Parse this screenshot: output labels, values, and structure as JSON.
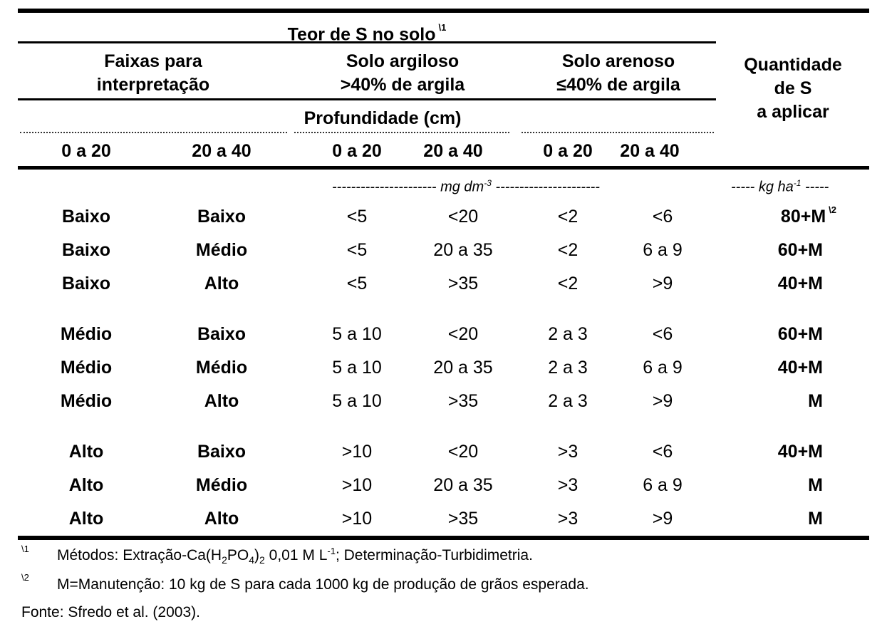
{
  "header": {
    "teor": "Teor de S no solo",
    "teor_sup": "\\1",
    "faixas_line1": "Faixas para",
    "faixas_line2": "interpretação",
    "argiloso_line1": "Solo argiloso",
    "argiloso_line2": ">40% de argila",
    "arenoso_line1": "Solo arenoso",
    "arenoso_line2": "≤40% de argila",
    "quantidade_line1": "Quantidade",
    "quantidade_line2": "de S",
    "quantidade_line3": "a aplicar",
    "profundidade": "Profundidade (cm)",
    "depths": [
      "0 a 20",
      "20 a 40",
      "0 a 20",
      "20 a 40",
      "0 a 20",
      "20 a 40"
    ]
  },
  "units": {
    "mg_left": "---------------------- ",
    "mg_label": "mg dm",
    "mg_sup": "-3",
    "mg_right": " ----------------------",
    "kg_left": "----- ",
    "kg_label": "kg ha",
    "kg_sup": "-1",
    "kg_right": " -----"
  },
  "rows": [
    {
      "c1": "Baixo",
      "c2": "Baixo",
      "c3": "<5",
      "c4": "<20",
      "c5": "<2",
      "c6": "<6",
      "q": "80+M",
      "q_sup": "\\2"
    },
    {
      "c1": "Baixo",
      "c2": "Médio",
      "c3": "<5",
      "c4": "20 a 35",
      "c5": "<2",
      "c6": "6 a 9",
      "q": "60+M",
      "q_sup": ""
    },
    {
      "c1": "Baixo",
      "c2": "Alto",
      "c3": "<5",
      "c4": ">35",
      "c5": "<2",
      "c6": ">9",
      "q": "40+M",
      "q_sup": ""
    },
    {
      "c1": "Médio",
      "c2": "Baixo",
      "c3": "5 a 10",
      "c4": "<20",
      "c5": "2 a 3",
      "c6": "<6",
      "q": "60+M",
      "q_sup": ""
    },
    {
      "c1": "Médio",
      "c2": "Médio",
      "c3": "5 a 10",
      "c4": "20 a 35",
      "c5": "2 a 3",
      "c6": "6 a 9",
      "q": "40+M",
      "q_sup": ""
    },
    {
      "c1": "Médio",
      "c2": "Alto",
      "c3": "5 a 10",
      "c4": ">35",
      "c5": "2 a 3",
      "c6": ">9",
      "q": "M",
      "q_sup": ""
    },
    {
      "c1": "Alto",
      "c2": "Baixo",
      "c3": ">10",
      "c4": "<20",
      "c5": ">3",
      "c6": "<6",
      "q": "40+M",
      "q_sup": ""
    },
    {
      "c1": "Alto",
      "c2": "Médio",
      "c3": ">10",
      "c4": "20 a 35",
      "c5": ">3",
      "c6": "6 a 9",
      "q": "M",
      "q_sup": ""
    },
    {
      "c1": "Alto",
      "c2": "Alto",
      "c3": ">10",
      "c4": ">35",
      "c5": ">3",
      "c6": ">9",
      "q": "M",
      "q_sup": ""
    }
  ],
  "footnotes": {
    "n1_mark": "\\1",
    "n1_a": "Métodos: Extração-Ca(H",
    "n1_sub1": "2",
    "n1_b": "PO",
    "n1_sub2": "4",
    "n1_c": ")",
    "n1_sub3": "2",
    "n1_d": " 0,01 M L",
    "n1_sup": "-1",
    "n1_e": "; Determinação-Turbidimetria.",
    "n2_mark": "\\2",
    "n2_text": "M=Manutenção: 10 kg de S para cada 1000 kg de produção de grãos esperada.",
    "fonte": "Fonte: Sfredo et al. (2003)."
  }
}
